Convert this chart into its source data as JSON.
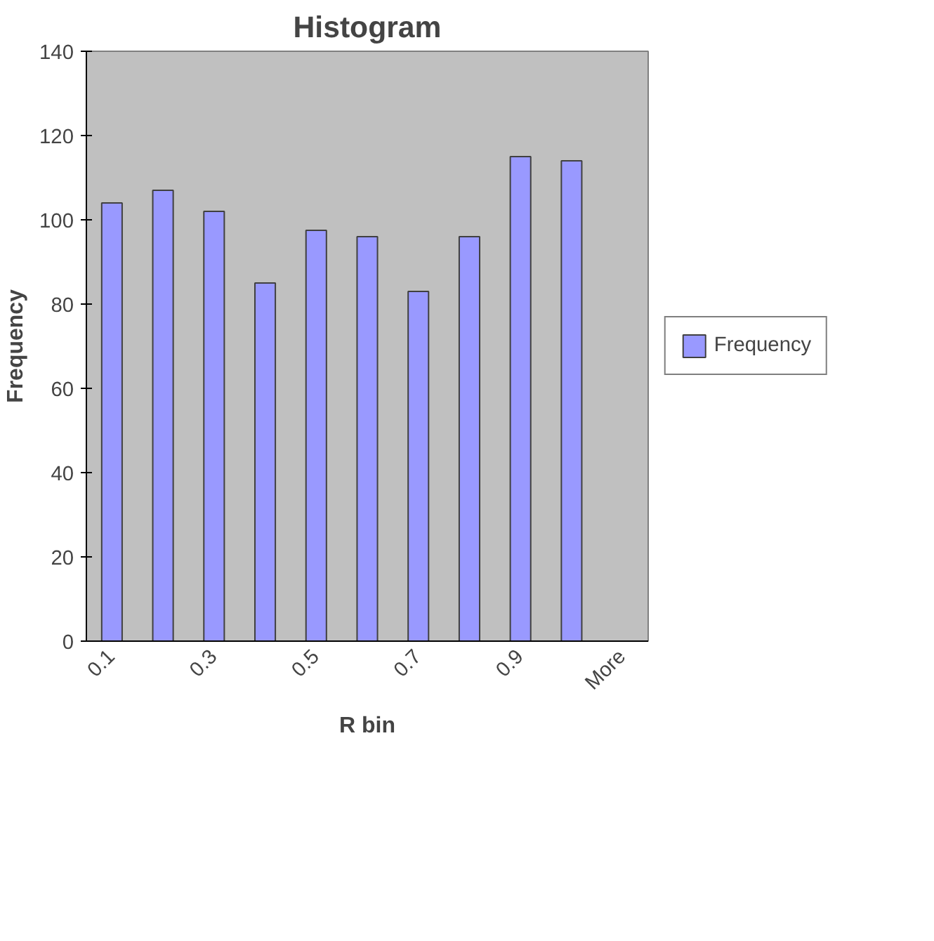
{
  "chart_data": {
    "type": "bar",
    "title": "Histogram",
    "xlabel": "R bin",
    "ylabel": "Frequency",
    "categories": [
      "0.1",
      null,
      "0.3",
      null,
      "0.5",
      null,
      "0.7",
      null,
      "0.9",
      null,
      "More"
    ],
    "series": [
      {
        "name": "Frequency",
        "color": "#9999ff",
        "values": [
          104,
          107,
          102,
          85,
          97.5,
          96,
          83,
          96,
          115,
          114,
          0
        ]
      }
    ],
    "ylim": [
      0,
      140
    ],
    "yticks": [
      0,
      20,
      40,
      60,
      80,
      100,
      120,
      140
    ],
    "grid": false,
    "legend": "right"
  }
}
